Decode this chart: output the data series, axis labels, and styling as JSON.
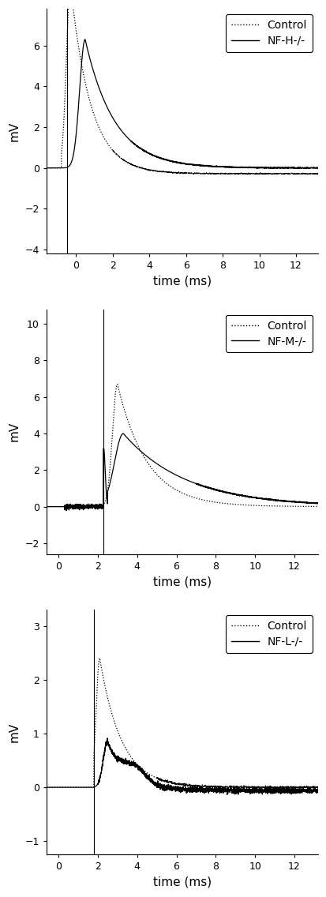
{
  "panels": [
    {
      "ylabel": "mV",
      "xlabel": "time (ms)",
      "legend_label": "NF-H-/-",
      "ylim": [
        -4.2,
        7.8
      ],
      "yticks": [
        -4,
        -2,
        0,
        2,
        4,
        6
      ],
      "xlim": [
        -1.6,
        13.2
      ],
      "xticks": [
        0,
        2,
        4,
        6,
        8,
        10,
        12
      ],
      "stim_line": -0.5
    },
    {
      "ylabel": "mV",
      "xlabel": "time (ms)",
      "legend_label": "NF-M-/-",
      "ylim": [
        -2.6,
        10.8
      ],
      "yticks": [
        -2,
        0,
        2,
        4,
        6,
        8,
        10
      ],
      "xlim": [
        -0.6,
        13.2
      ],
      "xticks": [
        0,
        2,
        4,
        6,
        8,
        10,
        12
      ],
      "stim_line": 2.3
    },
    {
      "ylabel": "mV",
      "xlabel": "time (ms)",
      "legend_label": "NF-L-/-",
      "ylim": [
        -1.25,
        3.3
      ],
      "yticks": [
        -1,
        0,
        1,
        2,
        3
      ],
      "xlim": [
        -0.6,
        13.2
      ],
      "xticks": [
        0,
        2,
        4,
        6,
        8,
        10,
        12
      ],
      "stim_line": 1.8
    }
  ],
  "bg_color": "#ffffff",
  "font_size": 11,
  "legend_font_size": 10
}
